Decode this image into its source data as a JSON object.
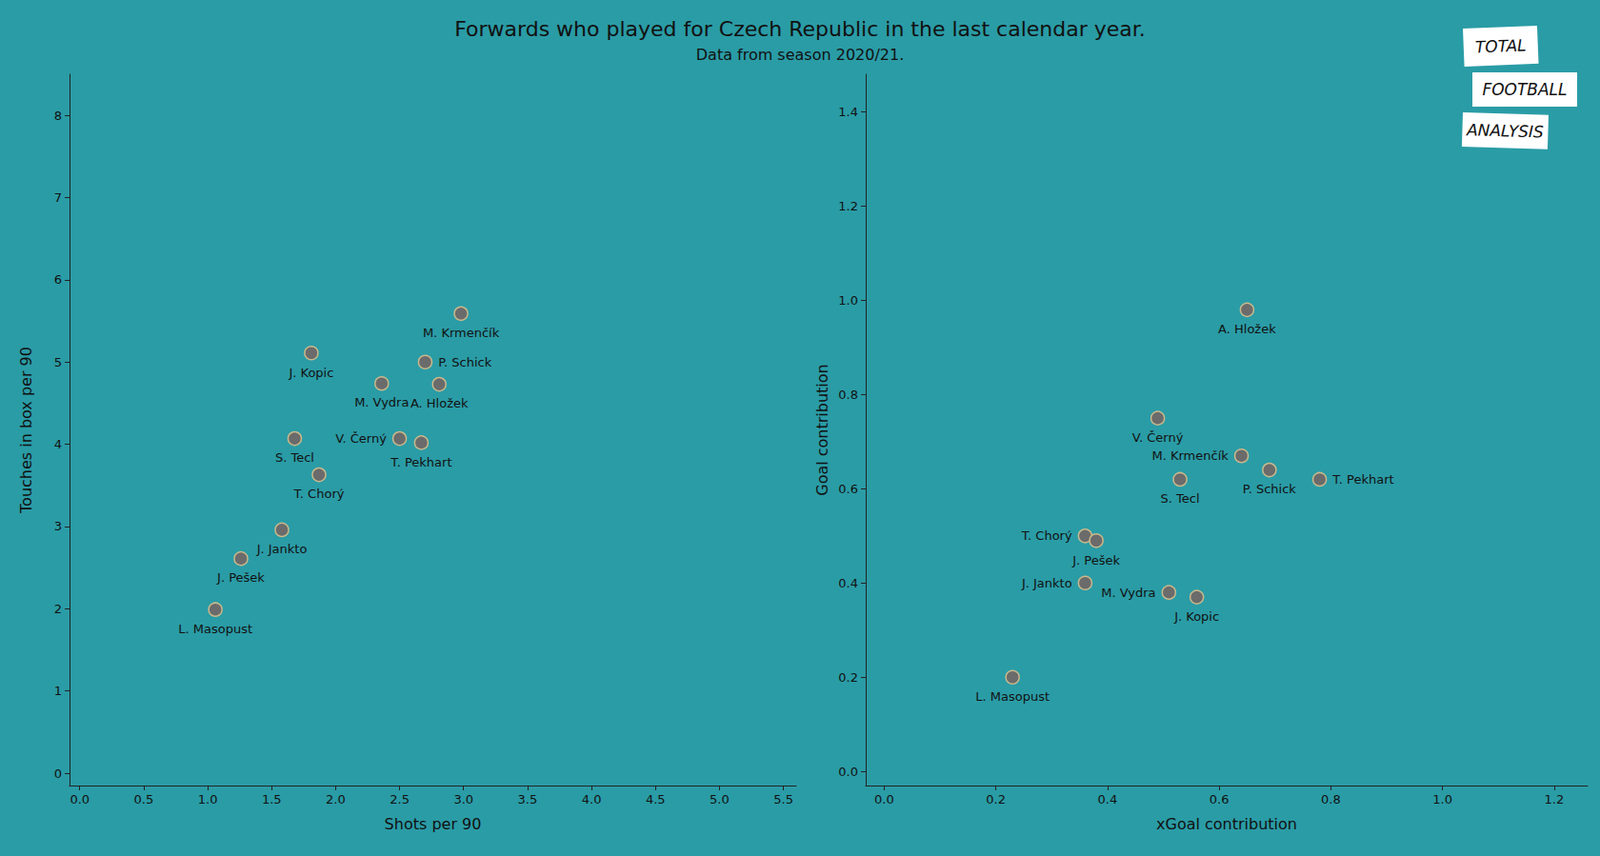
{
  "chart_data": [
    {
      "type": "scatter",
      "title": "Forwards who played for Czech Republic in the last calendar year.",
      "subtitle": "Data from season 2020/21.",
      "annotations": [
        "TOTAL",
        "FOOTBALL",
        "ANALYSIS"
      ],
      "x_label": "Shots per 90",
      "y_label": "Touches in box per 90",
      "labels": [
        "M. Krmenčík",
        "J. Kopic",
        "P. Schick",
        "M. Vydra",
        "A. Hložek",
        "S. Tecl",
        "V. Černý",
        "T. Pekhart",
        "T. Chorý",
        "J. Jankto",
        "J. Pešek",
        "L. Masopust"
      ],
      "x": [
        2.98,
        1.81,
        2.7,
        2.36,
        2.81,
        1.68,
        2.5,
        2.67,
        1.87,
        1.58,
        1.26,
        1.06
      ],
      "values": [
        5.59,
        5.11,
        5.0,
        4.74,
        4.73,
        4.07,
        4.07,
        4.02,
        3.63,
        2.96,
        2.61,
        1.99
      ],
      "color": "#6b6b6b",
      "marker": "circle",
      "grid": false,
      "xlim": [
        -0.08,
        5.6
      ],
      "xticks": [
        {
          "value": 0,
          "label": "0.0"
        },
        {
          "value": 0.5,
          "label": "0.5"
        },
        {
          "value": 1,
          "label": "1.0"
        },
        {
          "value": 1.5,
          "label": "1.5"
        },
        {
          "value": 2,
          "label": "2.0"
        },
        {
          "value": 2.5,
          "label": "2.5"
        },
        {
          "value": 3,
          "label": "3.0"
        },
        {
          "value": 3.5,
          "label": "3.5"
        },
        {
          "value": 4,
          "label": "4.0"
        },
        {
          "value": 4.5,
          "label": "4.5"
        },
        {
          "value": 5,
          "label": "5.0"
        },
        {
          "value": 5.5,
          "label": "5.5"
        }
      ],
      "ylim": [
        -0.15,
        8.5
      ],
      "yticks": [
        0,
        1,
        2,
        3,
        4,
        5,
        6,
        7,
        8
      ]
    },
    {
      "type": "scatter",
      "x_label": "xGoal contribution",
      "y_label": "Goal contribution",
      "labels": [
        "A. Hložek",
        "V. Černý",
        "M. Krmenčík",
        "P. Schick",
        "T. Pekhart",
        "S. Tecl",
        "T. Chorý",
        "J. Pešek",
        "J. Jankto",
        "M. Vydra",
        "J. Kopic",
        "L. Masopust"
      ],
      "x": [
        0.65,
        0.49,
        0.64,
        0.69,
        0.78,
        0.53,
        0.36,
        0.38,
        0.36,
        0.51,
        0.56,
        0.23
      ],
      "values": [
        0.98,
        0.75,
        0.67,
        0.64,
        0.62,
        0.62,
        0.5,
        0.49,
        0.4,
        0.38,
        0.37,
        0.2
      ],
      "color": "#6b6b6b",
      "marker": "circle",
      "grid": false,
      "xlim": [
        -0.033,
        1.26
      ],
      "xticks": [
        {
          "value": 0,
          "label": "0.0"
        },
        {
          "value": 0.2,
          "label": "0.2"
        },
        {
          "value": 0.4,
          "label": "0.4"
        },
        {
          "value": 0.6,
          "label": "0.6"
        },
        {
          "value": 0.8,
          "label": "0.8"
        },
        {
          "value": 1,
          "label": "1.0"
        },
        {
          "value": 1.2,
          "label": "1.2"
        }
      ],
      "ylim": [
        -0.03,
        1.48
      ],
      "yticks": [
        {
          "value": 0,
          "label": "0.0"
        },
        {
          "value": 0.2,
          "label": "0.2"
        },
        {
          "value": 0.4,
          "label": "0.4"
        },
        {
          "value": 0.6,
          "label": "0.6"
        },
        {
          "value": 0.8,
          "label": "0.8"
        },
        {
          "value": 1,
          "label": "1.0"
        },
        {
          "value": 1.2,
          "label": "1.2"
        },
        {
          "value": 1.4,
          "label": "1.4"
        }
      ]
    }
  ]
}
